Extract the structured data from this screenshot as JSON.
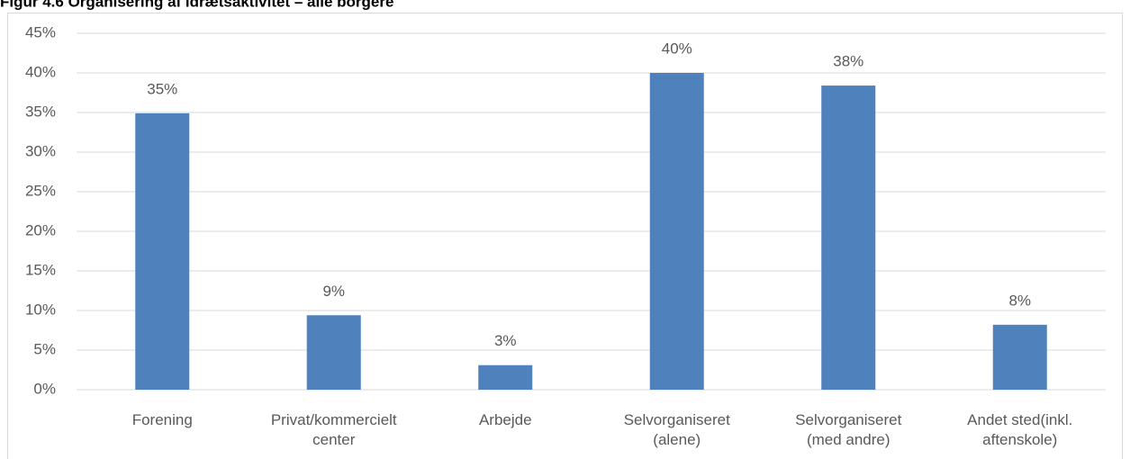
{
  "chart_data": {
    "type": "bar",
    "title": "Figur 4.6 Organisering af idrætsaktivitet – alle borgere",
    "categories": [
      "Forening",
      "Privat/kommercielt center",
      "Arbejde",
      "Selvorganiseret (alene)",
      "Selvorganiseret (med andre)",
      "Andet sted(inkl. aftenskole)"
    ],
    "values": [
      34.9,
      9.4,
      3.1,
      40.0,
      38.4,
      8.2
    ],
    "value_labels": [
      "35%",
      "9%",
      "3%",
      "40%",
      "38%",
      "8%"
    ],
    "color": "#4f81bd",
    "ylim": [
      0,
      45
    ],
    "yticks": [
      {
        "value": 0,
        "label": "0%"
      },
      {
        "value": 5,
        "label": "5%"
      },
      {
        "value": 10,
        "label": "10%"
      },
      {
        "value": 15,
        "label": "15%"
      },
      {
        "value": 20,
        "label": "20%"
      },
      {
        "value": 25,
        "label": "25%"
      },
      {
        "value": 30,
        "label": "30%"
      },
      {
        "value": 35,
        "label": "35%"
      },
      {
        "value": 40,
        "label": "40%"
      },
      {
        "value": 45,
        "label": "45%"
      }
    ],
    "grid": true
  }
}
